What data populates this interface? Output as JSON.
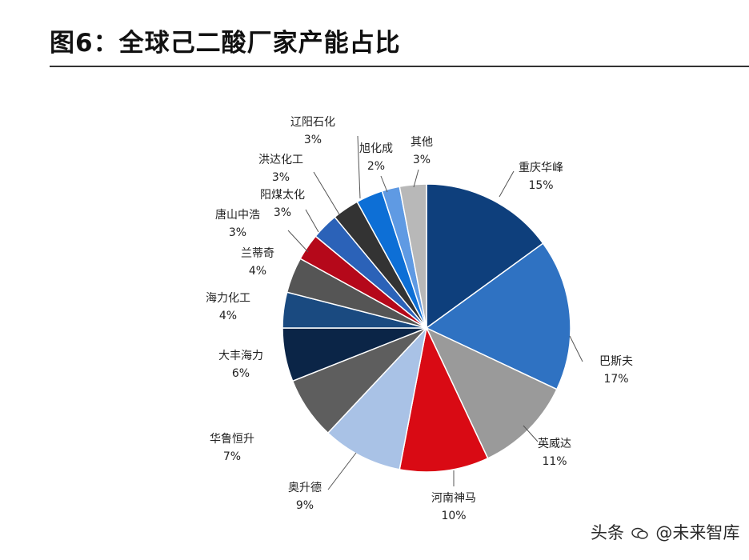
{
  "title": "图6：全球己二酸厂家产能占比",
  "watermark": {
    "source": "头条",
    "account": "@未来智库",
    "icon": "wechat-chat-icon"
  },
  "chart_data": {
    "type": "pie",
    "title": "",
    "unit": "%",
    "start_angle": "12 o'clock",
    "direction": "clockwise",
    "slices": [
      {
        "label": "重庆华峰",
        "value": 15,
        "value_text": "15%",
        "color": "#0e3f7c"
      },
      {
        "label": "巴斯夫",
        "value": 17,
        "value_text": "17%",
        "color": "#2f72c2"
      },
      {
        "label": "英威达",
        "value": 11,
        "value_text": "11%",
        "color": "#9a9a9a"
      },
      {
        "label": "河南神马",
        "value": 10,
        "value_text": "10%",
        "color": "#d90a14"
      },
      {
        "label": "奥升德",
        "value": 9,
        "value_text": "9%",
        "color": "#a9c2e6"
      },
      {
        "label": "华鲁恒升",
        "value": 7,
        "value_text": "7%",
        "color": "#5e5e5e"
      },
      {
        "label": "大丰海力",
        "value": 6,
        "value_text": "6%",
        "color": "#0b2547"
      },
      {
        "label": "海力化工",
        "value": 4,
        "value_text": "4%",
        "color": "#1a4a80"
      },
      {
        "label": "兰蒂奇",
        "value": 4,
        "value_text": "4%",
        "color": "#555555"
      },
      {
        "label": "唐山中浩",
        "value": 3,
        "value_text": "3%",
        "color": "#b5081a"
      },
      {
        "label": "阳煤太化",
        "value": 3,
        "value_text": "3%",
        "color": "#2b62b8"
      },
      {
        "label": "洪达化工",
        "value": 3,
        "value_text": "3%",
        "color": "#333333"
      },
      {
        "label": "辽阳石化",
        "value": 3,
        "value_text": "3%",
        "color": "#0d6fd6"
      },
      {
        "label": "旭化成",
        "value": 2,
        "value_text": "2%",
        "color": "#5f9ae3"
      },
      {
        "label": "其他",
        "value": 3,
        "value_text": "3%",
        "color": "#b8b8b8"
      }
    ]
  }
}
